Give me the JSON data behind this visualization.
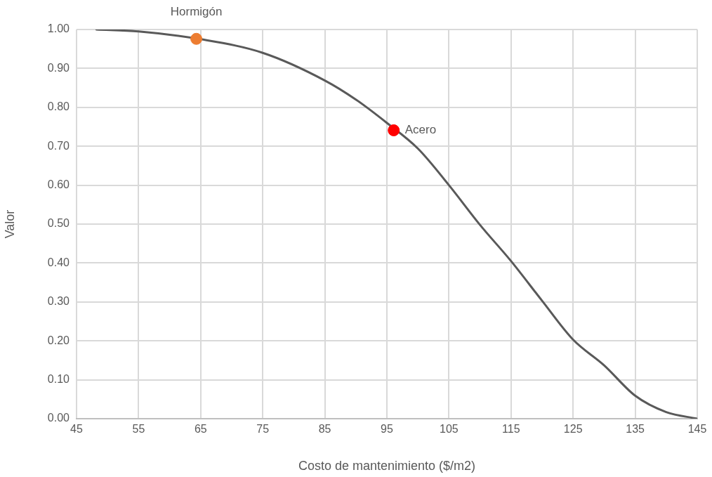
{
  "chart_data": {
    "type": "line",
    "xlabel": "Costo de mantenimiento ($/m2)",
    "ylabel": "Valor",
    "series": [
      {
        "marker": "none",
        "color": "#595959",
        "x": [
          48.2,
          55,
          65,
          75,
          85,
          90,
          95,
          100,
          105,
          110,
          115,
          120,
          125,
          130,
          135,
          140,
          145
        ],
        "values": [
          1.0,
          0.995,
          0.975,
          0.94,
          0.869,
          0.82,
          0.76,
          0.694,
          0.6,
          0.498,
          0.405,
          0.303,
          0.203,
          0.137,
          0.059,
          0.017,
          0.0
        ]
      },
      {
        "type": "scatter",
        "marker": "circle",
        "name": "Hormigón",
        "color": "#ed7d31",
        "x": [
          64.3
        ],
        "values": [
          0.976
        ]
      },
      {
        "type": "scatter",
        "marker": "circle",
        "name": "Acero",
        "color": "#ff0000",
        "x": [
          96.1
        ],
        "values": [
          0.741
        ]
      }
    ],
    "xlim": [
      45,
      145
    ],
    "xticks": [
      45,
      55,
      65,
      75,
      85,
      95,
      105,
      115,
      125,
      135,
      145
    ],
    "ylim": [
      0,
      1
    ],
    "yticks": [
      {
        "value": 0,
        "label": "0.00"
      },
      {
        "value": 0.1,
        "label": "0.10"
      },
      {
        "value": 0.2,
        "label": "0.20"
      },
      {
        "value": 0.3,
        "label": "0.30"
      },
      {
        "value": 0.4,
        "label": "0.40"
      },
      {
        "value": 0.5,
        "label": "0.50"
      },
      {
        "value": 0.6,
        "label": "0.60"
      },
      {
        "value": 0.7,
        "label": "0.70"
      },
      {
        "value": 0.8,
        "label": "0.80"
      },
      {
        "value": 0.9,
        "label": "0.90"
      },
      {
        "value": 1,
        "label": "1.00"
      }
    ],
    "grid": true,
    "legend": false
  }
}
